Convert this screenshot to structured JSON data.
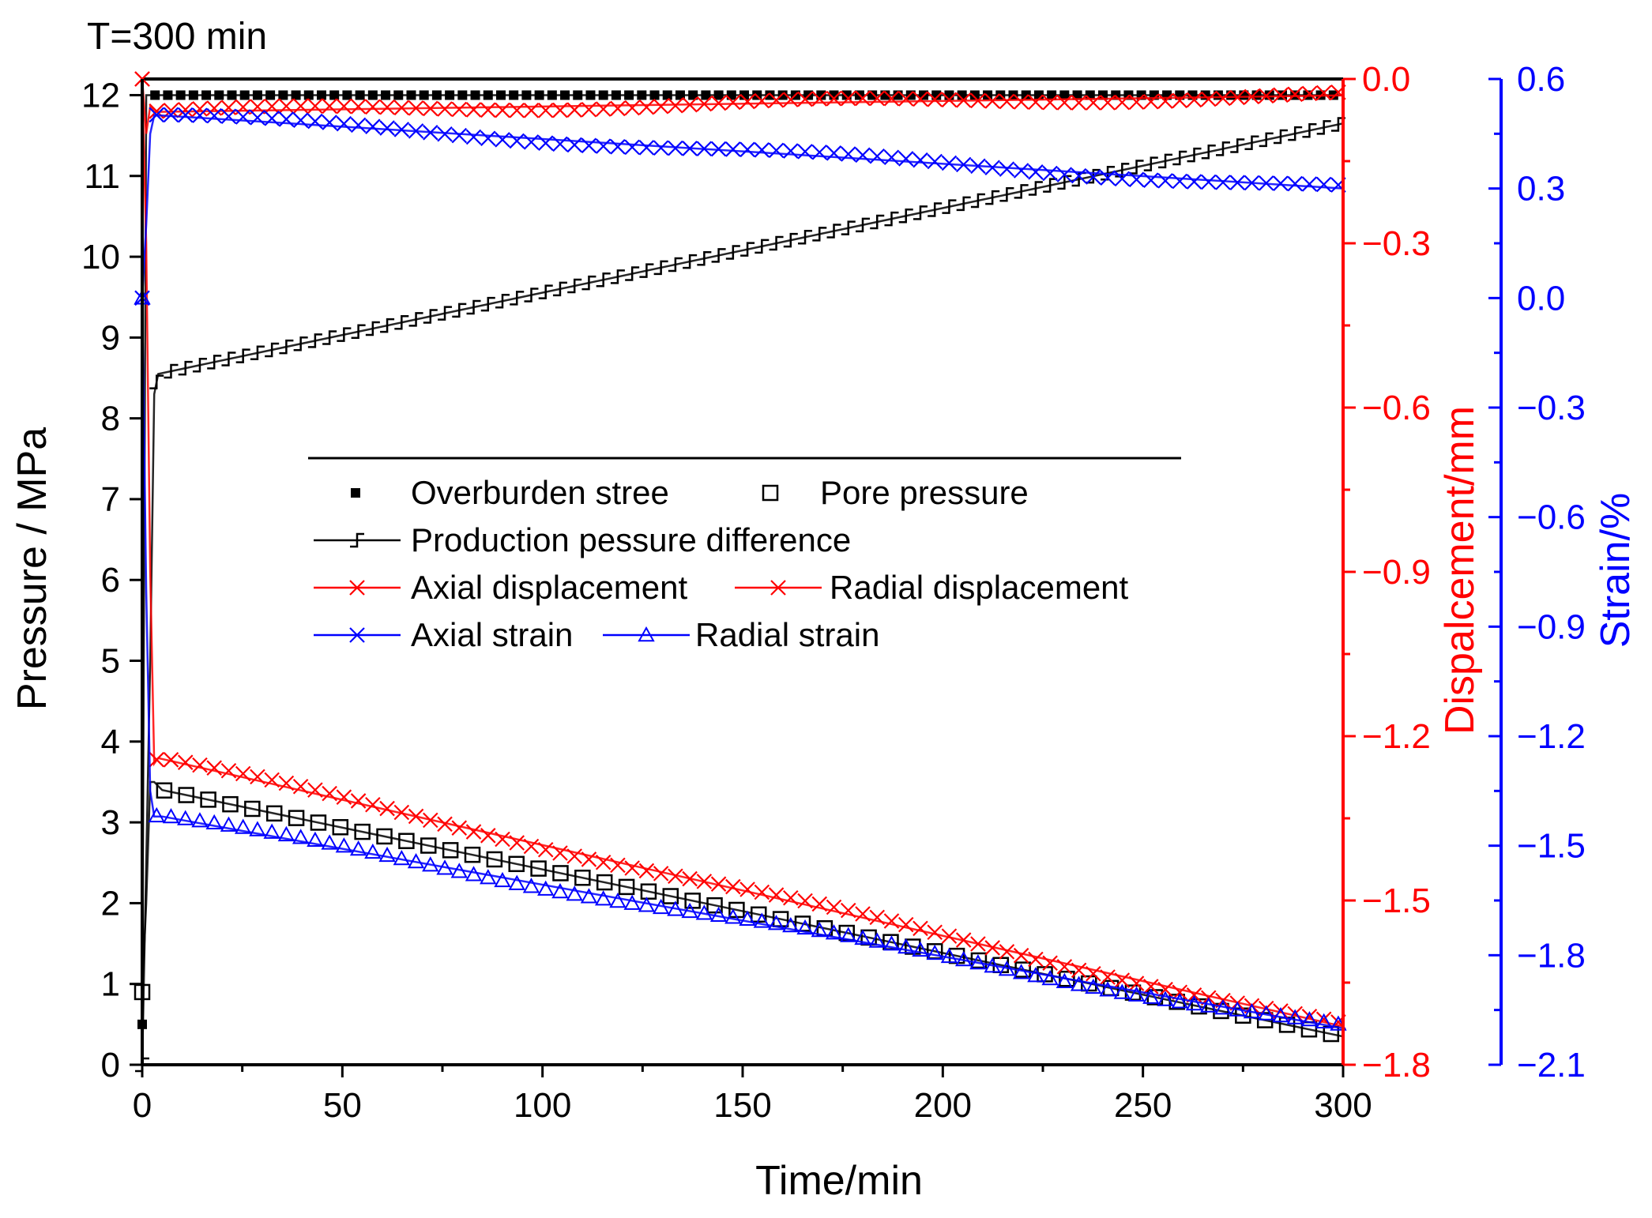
{
  "chart_data": {
    "type": "line",
    "title": "T=300 min",
    "xlabel": "Time/min",
    "ylabel_left": "Pressure / MPa",
    "ylabel_right1": "Dispalcement/mm",
    "ylabel_right2": "Strain/%",
    "xlim": [
      0,
      300
    ],
    "ylim_left": [
      0,
      12.2
    ],
    "ylim_right1": [
      -1.8,
      0.0
    ],
    "ylim_right2": [
      -2.1,
      0.6
    ],
    "x_ticks": [
      "0",
      "50",
      "100",
      "150",
      "200",
      "250",
      "300"
    ],
    "y_ticks_left": [
      "0",
      "1",
      "2",
      "3",
      "4",
      "5",
      "6",
      "7",
      "8",
      "9",
      "10",
      "11",
      "12"
    ],
    "y_ticks_right1": [
      "0.0",
      "−0.3",
      "−0.6",
      "−0.9",
      "−1.2",
      "−1.5",
      "−1.8"
    ],
    "y_ticks_right2": [
      "0.6",
      "0.3",
      "0.0",
      "−0.3",
      "−0.6",
      "−0.9",
      "−1.2",
      "−1.5",
      "−1.8",
      "−2.1"
    ],
    "colors": {
      "pressure_axis": "#000000",
      "displacement_axis": "#ff0000",
      "strain_axis": "#0000ff",
      "overburden": "#000000",
      "pore": "#000000",
      "production": "#000000",
      "axial_disp": "#ff0000",
      "radial_disp": "#ff0000",
      "axial_strain": "#0000ff",
      "radial_strain": "#0000ff"
    },
    "legend": {
      "position": "center",
      "row1": [
        "Overburden stree",
        "Pore pressure"
      ],
      "row2": [
        "Production pessure difference"
      ],
      "row3": [
        "Axial displacement",
        "Radial displacement"
      ],
      "row4": [
        "Axial strain",
        "Radial strain"
      ]
    },
    "series": [
      {
        "name": "Overburden stree",
        "axis": "pressure",
        "marker": "filled-square",
        "x": [
          0,
          1,
          3,
          4,
          300
        ],
        "y": [
          0.5,
          12.0,
          12.0,
          12.0,
          12.0
        ]
      },
      {
        "name": "Pore pressure",
        "axis": "pressure",
        "marker": "open-square",
        "x": [
          0,
          1,
          2,
          3,
          4,
          5,
          300
        ],
        "y": [
          0.9,
          2.0,
          3.5,
          3.5,
          3.45,
          3.4,
          0.35
        ]
      },
      {
        "name": "Production pessure difference",
        "axis": "pressure",
        "marker": "step",
        "x": [
          0,
          1,
          2,
          3,
          4,
          300
        ],
        "y": [
          0.0,
          2.5,
          5.0,
          8.3,
          8.55,
          11.65
        ]
      },
      {
        "name": "Axial displacement",
        "axis": "displacement",
        "marker": "x",
        "x": [
          0,
          1,
          2,
          3,
          4,
          300
        ],
        "y": [
          0.0,
          -0.1,
          -0.05,
          -0.06,
          -0.06,
          -0.03
        ]
      },
      {
        "name": "Radial displacement",
        "axis": "displacement",
        "marker": "x",
        "x": [
          0,
          1,
          2,
          3,
          4,
          300
        ],
        "y": [
          0.0,
          -0.3,
          -0.9,
          -1.25,
          -1.24,
          -1.73
        ]
      },
      {
        "name": "Axial strain",
        "axis": "strain",
        "marker": "x",
        "x": [
          0,
          1,
          2,
          3,
          5,
          300
        ],
        "y": [
          0.0,
          0.2,
          0.45,
          0.5,
          0.5,
          0.3
        ]
      },
      {
        "name": "Radial strain",
        "axis": "strain",
        "marker": "triangle",
        "x": [
          0,
          1,
          2,
          3,
          5,
          300
        ],
        "y": [
          0.0,
          -0.8,
          -1.35,
          -1.42,
          -1.42,
          -2.0
        ]
      }
    ]
  }
}
